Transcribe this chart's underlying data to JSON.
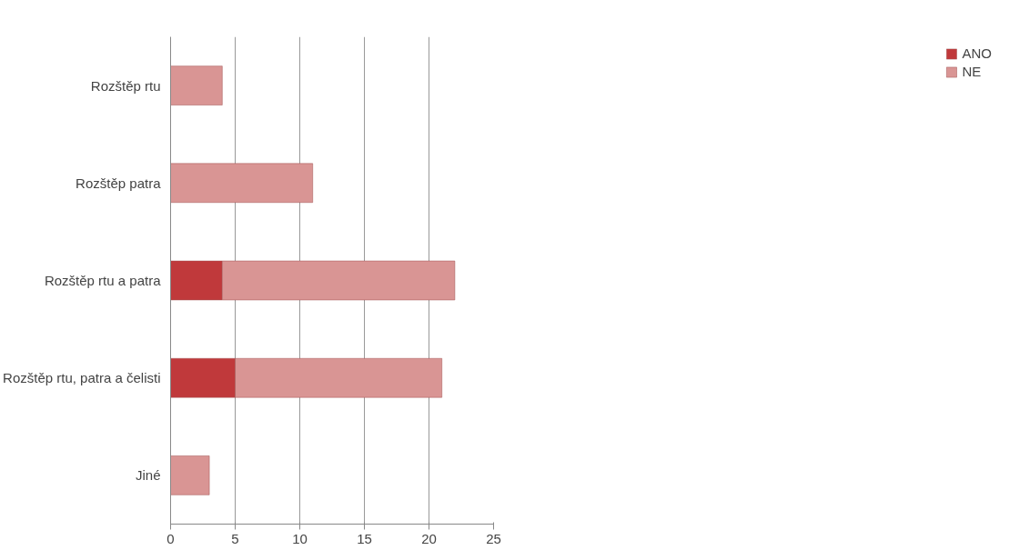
{
  "chart_data": {
    "type": "bar",
    "orientation": "horizontal",
    "stacked": true,
    "categories": [
      "Rozštěp rtu",
      "Rozštěp patra",
      "Rozštěp rtu a patra",
      "Rozštěp rtu, patra a čelisti",
      "Jiné"
    ],
    "series": [
      {
        "name": "ANO",
        "color": "#c0393b",
        "values": [
          0,
          0,
          4,
          5,
          0
        ]
      },
      {
        "name": "NE",
        "color": "#d99594",
        "values": [
          4,
          11,
          18,
          16,
          3
        ]
      }
    ],
    "xlim": [
      0,
      25
    ],
    "xticks": [
      0,
      5,
      10,
      15,
      20,
      25
    ],
    "grid": "x",
    "legend": "right"
  }
}
